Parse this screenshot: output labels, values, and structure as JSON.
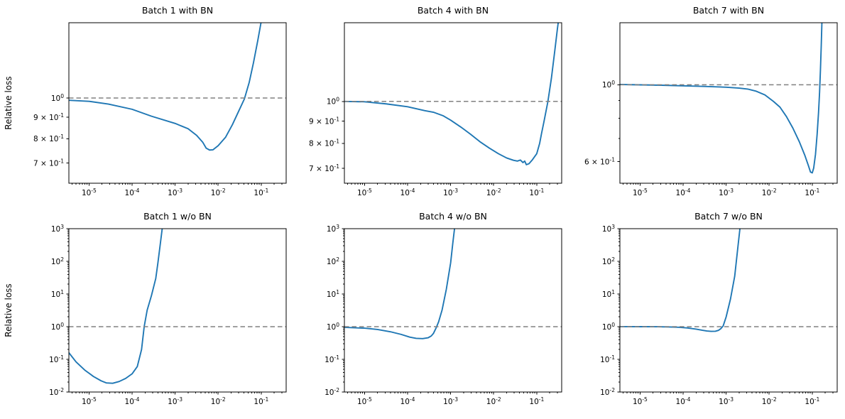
{
  "figure": {
    "background": "#ffffff",
    "curve_color": "#1f77b4",
    "reference_line_color": "#808080",
    "axis_color": "#000000",
    "ylabel": "Relative loss"
  },
  "x_tick_labels": [
    "10^-5",
    "10^-4",
    "10^-3",
    "10^-2",
    "10^-1"
  ],
  "chart_data": [
    {
      "type": "line",
      "title": "Batch 1 with BN",
      "xscale": "log",
      "yscale": "log",
      "xlim": [
        3.4e-06,
        0.38
      ],
      "ylim": [
        0.627,
        1.51
      ],
      "reference_line_y": 1.0,
      "yticks": [
        {
          "v": 1.0,
          "label": "10^0"
        },
        {
          "v": 0.9,
          "label": "9 × 10^-1"
        },
        {
          "v": 0.8,
          "label": "8 × 10^-1"
        },
        {
          "v": 0.7,
          "label": "7 × 10^-1"
        }
      ],
      "series": [
        {
          "name": "relative loss",
          "x": [
            3.16e-06,
            1e-05,
            2.82e-05,
            0.0001,
            0.000282,
            0.001,
            0.002,
            0.00316,
            0.00437,
            0.00525,
            0.00631,
            0.00759,
            0.01,
            0.0148,
            0.0214,
            0.0295,
            0.0407,
            0.0525,
            0.0661,
            0.0832,
            0.1
          ],
          "y": [
            0.988,
            0.982,
            0.967,
            0.94,
            0.905,
            0.87,
            0.845,
            0.815,
            0.785,
            0.76,
            0.752,
            0.753,
            0.77,
            0.806,
            0.864,
            0.927,
            0.995,
            1.088,
            1.213,
            1.37,
            1.52
          ]
        }
      ]
    },
    {
      "type": "line",
      "title": "Batch 4 with BN",
      "xscale": "log",
      "yscale": "log",
      "xlim": [
        3.4e-06,
        0.38
      ],
      "ylim": [
        0.647,
        1.52
      ],
      "reference_line_y": 1.0,
      "yticks": [
        {
          "v": 1.0,
          "label": "10^0"
        },
        {
          "v": 0.9,
          "label": "9 × 10^-1"
        },
        {
          "v": 0.8,
          "label": "8 × 10^-1"
        },
        {
          "v": 0.7,
          "label": "7 × 10^-1"
        }
      ],
      "series": [
        {
          "name": "relative loss",
          "x": [
            3.16e-06,
            1e-05,
            3.16e-05,
            0.0001,
            0.000251,
            0.000398,
            0.000661,
            0.001,
            0.00174,
            0.00288,
            0.00479,
            0.00794,
            0.0129,
            0.02,
            0.0288,
            0.0355,
            0.0417,
            0.0479,
            0.0525,
            0.0575,
            0.0661,
            0.0794,
            0.1,
            0.117,
            0.13,
            0.148,
            0.182,
            0.219,
            0.263,
            0.302,
            0.324
          ],
          "y": [
            1.0,
            0.998,
            0.987,
            0.972,
            0.952,
            0.944,
            0.927,
            0.905,
            0.872,
            0.84,
            0.807,
            0.78,
            0.757,
            0.74,
            0.731,
            0.728,
            0.732,
            0.722,
            0.728,
            0.714,
            0.718,
            0.733,
            0.757,
            0.8,
            0.845,
            0.9,
            1.0,
            1.13,
            1.31,
            1.47,
            1.55
          ]
        }
      ]
    },
    {
      "type": "line",
      "title": "Batch 7 with BN",
      "xscale": "log",
      "yscale": "log",
      "xlim": [
        3.4e-06,
        0.38
      ],
      "ylim": [
        0.52,
        1.51
      ],
      "reference_line_y": 1.0,
      "yticks": [
        {
          "v": 1.0,
          "label": "10^0"
        },
        {
          "v": 0.6,
          "label": "6 × 10^-1"
        }
      ],
      "series": [
        {
          "name": "relative loss",
          "x": [
            3.16e-06,
            3.16e-05,
            0.000316,
            0.001,
            0.002,
            0.00316,
            0.00501,
            0.00794,
            0.0126,
            0.0178,
            0.0251,
            0.0355,
            0.0501,
            0.0676,
            0.0813,
            0.0912,
            0.1,
            0.108,
            0.119,
            0.13,
            0.14,
            0.148,
            0.155,
            0.162,
            0.168
          ],
          "y": [
            1.002,
            0.997,
            0.989,
            0.984,
            0.978,
            0.972,
            0.958,
            0.935,
            0.895,
            0.862,
            0.81,
            0.75,
            0.685,
            0.625,
            0.585,
            0.56,
            0.557,
            0.575,
            0.63,
            0.72,
            0.83,
            0.95,
            1.1,
            1.3,
            1.52
          ]
        }
      ]
    },
    {
      "type": "line",
      "title": "Batch 1 w/o BN",
      "xscale": "log",
      "yscale": "log",
      "xlim": [
        3.4e-06,
        0.38
      ],
      "ylim": [
        0.01,
        1000
      ],
      "reference_line_y": 1.0,
      "yticks": [
        {
          "v": 1000,
          "label": "10^3"
        },
        {
          "v": 100,
          "label": "10^2"
        },
        {
          "v": 10,
          "label": "10^1"
        },
        {
          "v": 1,
          "label": "10^0"
        },
        {
          "v": 0.1,
          "label": "10^-1"
        },
        {
          "v": 0.01,
          "label": "10^-2"
        }
      ],
      "series": [
        {
          "name": "relative loss",
          "x": [
            3.16e-06,
            5.01e-06,
            7.94e-06,
            1.26e-05,
            1.91e-05,
            2.51e-05,
            3.55e-05,
            5.01e-05,
            7.08e-05,
            0.0001,
            0.000132,
            0.000166,
            0.000191,
            0.000224,
            0.000282,
            0.000355,
            0.000398,
            0.000447,
            0.000501
          ],
          "y": [
            0.18,
            0.083,
            0.047,
            0.03,
            0.022,
            0.019,
            0.0185,
            0.021,
            0.026,
            0.036,
            0.06,
            0.2,
            1.0,
            3.2,
            9.0,
            30,
            90,
            300,
            1000
          ]
        }
      ]
    },
    {
      "type": "line",
      "title": "Batch 4 w/o BN",
      "xscale": "log",
      "yscale": "log",
      "xlim": [
        3.4e-06,
        0.38
      ],
      "ylim": [
        0.01,
        1000
      ],
      "reference_line_y": 1.0,
      "yticks": [
        {
          "v": 1000,
          "label": "10^3"
        },
        {
          "v": 100,
          "label": "10^2"
        },
        {
          "v": 10,
          "label": "10^1"
        },
        {
          "v": 1,
          "label": "10^0"
        },
        {
          "v": 0.1,
          "label": "10^-1"
        },
        {
          "v": 0.01,
          "label": "10^-2"
        }
      ],
      "series": [
        {
          "name": "relative loss",
          "x": [
            3.16e-06,
            1e-05,
            2e-05,
            3.98e-05,
            7.08e-05,
            0.000112,
            0.000158,
            0.000224,
            0.000302,
            0.000355,
            0.000398,
            0.000457,
            0.000525,
            0.000631,
            0.000794,
            0.001,
            0.00112,
            0.00123
          ],
          "y": [
            0.96,
            0.9,
            0.82,
            0.7,
            0.58,
            0.48,
            0.44,
            0.43,
            0.46,
            0.52,
            0.62,
            0.9,
            1.4,
            3.2,
            14,
            90,
            350,
            1000
          ]
        }
      ]
    },
    {
      "type": "line",
      "title": "Batch 7 w/o BN",
      "xscale": "log",
      "yscale": "log",
      "xlim": [
        3.4e-06,
        0.38
      ],
      "ylim": [
        0.01,
        1000
      ],
      "reference_line_y": 1.0,
      "yticks": [
        {
          "v": 1000,
          "label": "10^3"
        },
        {
          "v": 100,
          "label": "10^2"
        },
        {
          "v": 10,
          "label": "10^1"
        },
        {
          "v": 1,
          "label": "10^0"
        },
        {
          "v": 0.1,
          "label": "10^-1"
        },
        {
          "v": 0.01,
          "label": "10^-2"
        }
      ],
      "series": [
        {
          "name": "relative loss",
          "x": [
            3.16e-06,
            1e-05,
            2.51e-05,
            5.01e-05,
            7.94e-05,
            0.000126,
            0.0002,
            0.000282,
            0.000355,
            0.000447,
            0.000562,
            0.000661,
            0.000759,
            0.000851,
            0.001,
            0.00126,
            0.00158,
            0.00186,
            0.00209
          ],
          "y": [
            1.002,
            1.0,
            0.995,
            0.98,
            0.96,
            0.915,
            0.84,
            0.775,
            0.74,
            0.72,
            0.725,
            0.77,
            0.88,
            1.05,
            2.0,
            7.0,
            35,
            250,
            1000
          ]
        }
      ]
    }
  ]
}
